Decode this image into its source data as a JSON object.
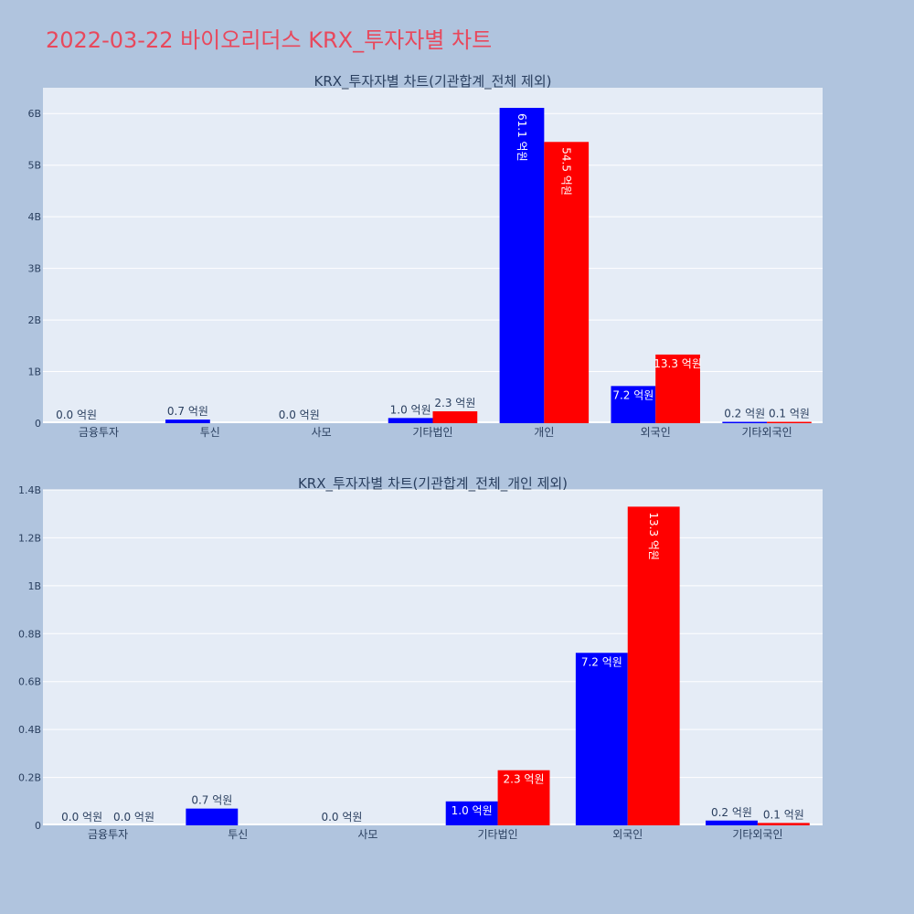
{
  "page": {
    "title": "2022-03-22 바이오리더스 KRX_투자자별 차트"
  },
  "colors": {
    "buy": "#0000ff",
    "sell": "#ff0000",
    "plot_bg": "#e5ecf6",
    "paper_bg": "#b0c4de",
    "title": "#e8485c",
    "text": "#2a3f5f"
  },
  "chart_data": [
    {
      "type": "bar",
      "title": "KRX_투자자별 차트(기관합계_전체 제외)",
      "categories": [
        "금융투자",
        "투신",
        "사모",
        "기타법인",
        "개인",
        "외국인",
        "기타외국인"
      ],
      "ylim": [
        0,
        6500000000
      ],
      "yticks": [
        0,
        1000000000,
        2000000000,
        3000000000,
        4000000000,
        5000000000,
        6000000000
      ],
      "ytick_labels": [
        "0",
        "1B",
        "2B",
        "3B",
        "4B",
        "5B",
        "6B"
      ],
      "grid": true,
      "series": [
        {
          "values": [
            0,
            70000000,
            0,
            100000000,
            6110000000,
            720000000,
            20000000
          ],
          "labels": [
            "0.0 억원",
            "0.7 억원",
            "0.0 억원",
            "1.0 억원",
            "61.1 억원",
            "7.2 억원",
            "0.2 억원"
          ]
        },
        {
          "values": [
            null,
            null,
            null,
            230000000,
            5450000000,
            1330000000,
            10000000
          ],
          "labels": [
            null,
            null,
            null,
            "2.3 억원",
            "54.5 억원",
            "13.3 억원",
            "0.1 억원"
          ]
        }
      ]
    },
    {
      "type": "bar",
      "title": "KRX_투자자별 차트(기관합계_전체_개인 제외)",
      "categories": [
        "금융투자",
        "투신",
        "사모",
        "기타법인",
        "외국인",
        "기타외국인"
      ],
      "ylim": [
        0,
        1400000000
      ],
      "yticks": [
        0,
        200000000,
        400000000,
        600000000,
        800000000,
        1000000000,
        1200000000,
        1400000000
      ],
      "ytick_labels": [
        "0",
        "0.2B",
        "0.4B",
        "0.6B",
        "0.8B",
        "1B",
        "1.2B",
        "1.4B"
      ],
      "grid": true,
      "series": [
        {
          "values": [
            0,
            70000000,
            0,
            100000000,
            720000000,
            20000000
          ],
          "labels": [
            "0.0 억원",
            "0.7 억원",
            "0.0 억원",
            "1.0 억원",
            "7.2 억원",
            "0.2 억원"
          ]
        },
        {
          "values": [
            0,
            null,
            null,
            230000000,
            1330000000,
            10000000
          ],
          "labels": [
            "0.0 억원",
            null,
            null,
            "2.3 억원",
            "13.3 억원",
            "0.1 억원"
          ]
        }
      ]
    }
  ]
}
